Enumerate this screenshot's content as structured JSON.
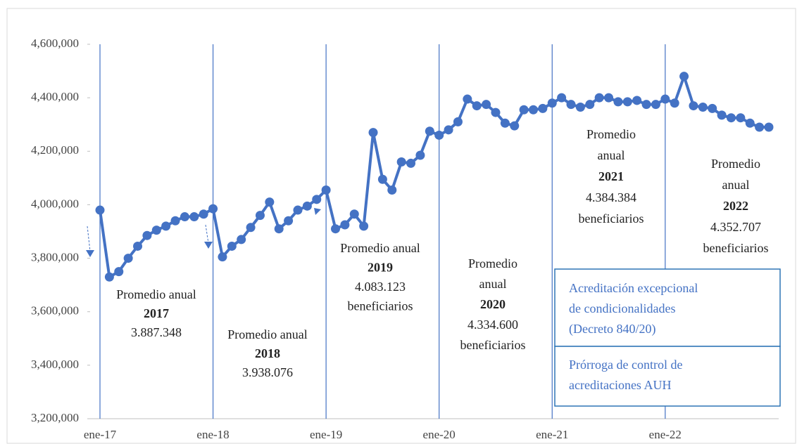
{
  "chart_data": {
    "type": "line",
    "categories": [
      "ene-17",
      null,
      null,
      null,
      null,
      null,
      null,
      null,
      null,
      null,
      null,
      null,
      "ene-18",
      null,
      null,
      null,
      null,
      null,
      null,
      null,
      null,
      null,
      null,
      null,
      "ene-19",
      null,
      null,
      null,
      null,
      null,
      null,
      null,
      null,
      null,
      null,
      null,
      "ene-20",
      null,
      null,
      null,
      null,
      null,
      null,
      null,
      null,
      null,
      null,
      null,
      "ene-21",
      null,
      null,
      null,
      null,
      null,
      null,
      null,
      null,
      null,
      null,
      null,
      "ene-22",
      null,
      null,
      null,
      null,
      null,
      null,
      null,
      null,
      null,
      null,
      null
    ],
    "series": [
      {
        "color": "#4472c4",
        "values": [
          3980000,
          3730000,
          3750000,
          3800000,
          3845000,
          3885000,
          3905000,
          3920000,
          3940000,
          3955000,
          3955000,
          3965000,
          3985000,
          3805000,
          3845000,
          3870000,
          3915000,
          3960000,
          4010000,
          3910000,
          3940000,
          3980000,
          3995000,
          4020000,
          4055000,
          3910000,
          3925000,
          3965000,
          3920000,
          4270000,
          4095000,
          4055000,
          4160000,
          4155000,
          4185000,
          4275000,
          4260000,
          4280000,
          4310000,
          4395000,
          4370000,
          4375000,
          4345000,
          4305000,
          4295000,
          4355000,
          4355000,
          4360000,
          4380000,
          4400000,
          4375000,
          4365000,
          4375000,
          4400000,
          4400000,
          4385000,
          4385000,
          4390000,
          4375000,
          4375000,
          4395000,
          4380000,
          4480000,
          4370000,
          4365000,
          4360000,
          4335000,
          4325000,
          4325000,
          4305000,
          4290000,
          4290000
        ]
      }
    ],
    "ylim": [
      3200000,
      4600000
    ],
    "yticks": [
      {
        "value": 3200000,
        "label": "3,200,000"
      },
      {
        "value": 3400000,
        "label": "3,400,000"
      },
      {
        "value": 3600000,
        "label": "3,600,000"
      },
      {
        "value": 3800000,
        "label": "3,800,000"
      },
      {
        "value": 4000000,
        "label": "4,000,000"
      },
      {
        "value": 4200000,
        "label": "4,200,000"
      },
      {
        "value": 4400000,
        "label": "4,400,000"
      },
      {
        "value": 4600000,
        "label": "4,600,000"
      }
    ],
    "vgrid": true,
    "annotations": [
      {
        "label": [
          "Promedio anual"
        ],
        "year": "2017",
        "value": [
          "3.887.348"
        ]
      },
      {
        "label": [
          "Promedio anual"
        ],
        "year": "2018",
        "value": [
          "3.938.076"
        ]
      },
      {
        "label": [
          "Promedio anual"
        ],
        "year": "2019",
        "value": [
          "4.083.123",
          "beneficiarios"
        ]
      },
      {
        "label": [
          "Promedio",
          "anual"
        ],
        "year": "2020",
        "value": [
          "4.334.600",
          "beneficiarios"
        ]
      },
      {
        "label": [
          "Promedio",
          "anual"
        ],
        "year": "2021",
        "value": [
          "4.384.384",
          "beneficiarios"
        ]
      },
      {
        "label": [
          "Promedio",
          "anual"
        ],
        "year": "2022",
        "value": [
          "4.352.707",
          "beneficiarios"
        ]
      }
    ],
    "legend_boxes": [
      {
        "lines": [
          "Acreditación excepcional",
          "de condicionalidades",
          "(Decreto 840/20)"
        ]
      },
      {
        "lines": [
          "Prórroga de control de",
          "acreditaciones AUH"
        ]
      }
    ]
  }
}
